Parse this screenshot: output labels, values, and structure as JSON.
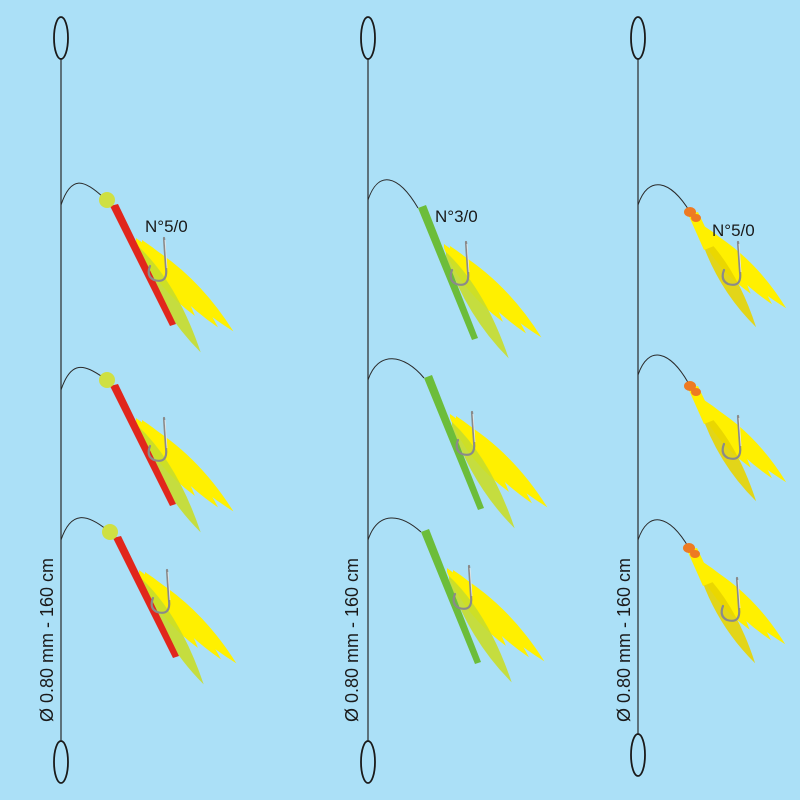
{
  "background_color": "#abe0f7",
  "rigs": [
    {
      "hook_label": "N°5/0",
      "line_label": "Ø 0.80 mm - 160 cm",
      "lure_style": "red-strip-with-bead",
      "colors": {
        "strip": "#e1261c",
        "bead": "#cfe043",
        "feather": "#fff000",
        "feather_shade": "#c8dd2a"
      },
      "droppers": 3,
      "label_on_dropper": 1
    },
    {
      "hook_label": "N°3/0",
      "line_label": "Ø 0.80 mm - 160 cm",
      "lure_style": "green-strip",
      "colors": {
        "strip": "#6cbd3a",
        "feather": "#fff000",
        "feather_shade": "#c8dd2a"
      },
      "droppers": 3,
      "label_on_dropper": 1
    },
    {
      "hook_label": "N°5/0",
      "line_label": "Ø 0.80 mm - 160 cm",
      "lure_style": "yellow-feather-with-orange-bead",
      "colors": {
        "bead": "#ee7a22",
        "feather": "#fff000",
        "feather_shade": "#e8d400"
      },
      "droppers": 3,
      "label_on_dropper": 1
    }
  ]
}
